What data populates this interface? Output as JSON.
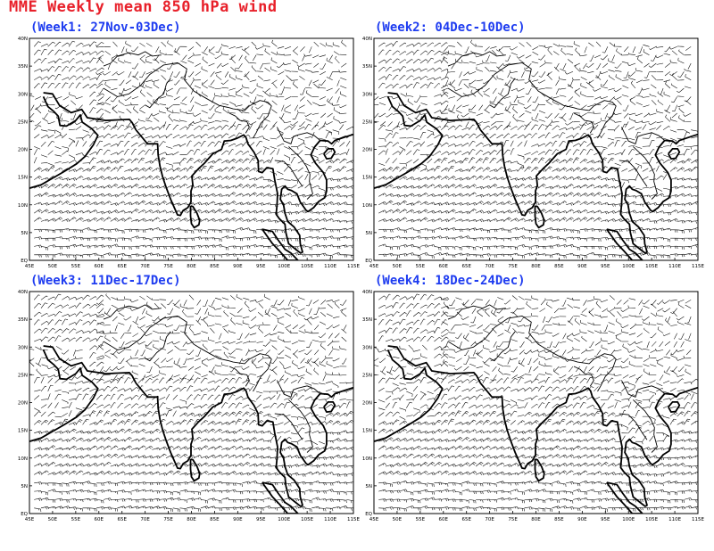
{
  "title": "MME Weekly mean 850 hPa wind",
  "colors": {
    "title": "#e8202a",
    "panel_title": "#1e3cf0",
    "coast": "#000000",
    "barb": "#000000"
  },
  "chart_data": {
    "type": "wind-barb-map",
    "variable": "850 hPa wind",
    "lon_range": [
      45,
      115
    ],
    "lat_range": [
      0,
      40
    ],
    "lon_ticks": [
      "45E",
      "50E",
      "55E",
      "60E",
      "65E",
      "70E",
      "75E",
      "80E",
      "85E",
      "90E",
      "95E",
      "100E",
      "105E",
      "110E",
      "115E"
    ],
    "lat_ticks": [
      "EQ",
      "5N",
      "10N",
      "15N",
      "20N",
      "25N",
      "30N",
      "35N",
      "40N"
    ],
    "grid_on": false,
    "legend": "none",
    "panels": [
      {
        "title": "(Week1: 27Nov-03Dec)"
      },
      {
        "title": "(Week2: 04Dec-10Dec)"
      },
      {
        "title": "(Week3: 11Dec-17Dec)"
      },
      {
        "title": "(Week4: 18Dec-24Dec)"
      }
    ]
  }
}
